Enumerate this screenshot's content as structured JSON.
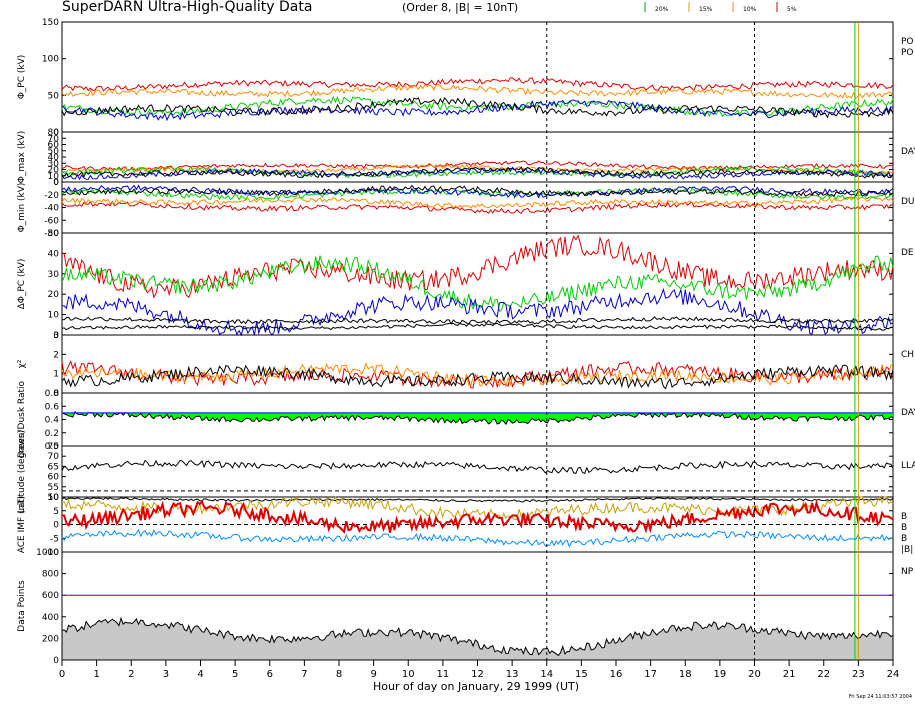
{
  "header": {
    "title": "SuperDARN Ultra-High-Quality Data",
    "subtitle": "(Order 8, |B| = 10nT)",
    "legend": [
      {
        "label": "20%",
        "color": "#00a000"
      },
      {
        "label": "15%",
        "color": "#d8a000"
      },
      {
        "label": "10%",
        "color": "#ff8000"
      },
      {
        "label": "5%",
        "color": "#e00000"
      }
    ],
    "footer_stamp": "Fri Sep 24 11:03:57 2004"
  },
  "colors": {
    "red": "#e00000",
    "green": "#00d000",
    "blue": "#0000d0",
    "orange": "#ff8c00",
    "black": "#000000",
    "gold": "#c8a000",
    "cyan": "#0090ff",
    "purple": "#6000a0",
    "fill_green": "#00ff00",
    "fill_blue": "#0000ff",
    "fill_gray": "#c8c8c8"
  },
  "chart_data": {
    "type": "line",
    "xlabel": "Hour of day on January, 29 1999 (UT)",
    "x_ticks": [
      "0",
      "1",
      "2",
      "3",
      "4",
      "5",
      "6",
      "7",
      "8",
      "9",
      "10",
      "11",
      "12",
      "13",
      "14",
      "15",
      "16",
      "17",
      "18",
      "19",
      "20",
      "21",
      "22",
      "23",
      "24"
    ],
    "xlim": [
      0,
      24
    ],
    "dashed_markers_hours": [
      14,
      20
    ],
    "vertical_highlight_hours": [
      22.9,
      23.0
    ],
    "panels": [
      {
        "id": "phi_pc",
        "ylabel": "Φ_PC (kV)",
        "ylim": [
          0,
          150
        ],
        "yticks": [
          "0",
          "50",
          "100",
          "150"
        ],
        "right_label": "PO\nPO",
        "series": [
          {
            "color": "red",
            "base": 65,
            "amp": 6,
            "noise": 4
          },
          {
            "color": "orange",
            "base": 55,
            "amp": 6,
            "noise": 4
          },
          {
            "color": "green",
            "base": 35,
            "amp": 10,
            "noise": 5
          },
          {
            "color": "blue",
            "base": 30,
            "amp": 10,
            "noise": 5
          },
          {
            "color": "black",
            "base": 32,
            "amp": 10,
            "noise": 5
          }
        ]
      },
      {
        "id": "phi_max",
        "ylabel": "Φ_max (kV)",
        "ylim": [
          0,
          80
        ],
        "yticks": [
          "0",
          "10",
          "20",
          "30",
          "40",
          "50",
          "60",
          "70",
          "80"
        ],
        "right_label": "DAY",
        "series": [
          {
            "color": "red",
            "base": 26,
            "amp": 5,
            "noise": 3
          },
          {
            "color": "orange",
            "base": 20,
            "amp": 5,
            "noise": 3
          },
          {
            "color": "green",
            "base": 15,
            "amp": 6,
            "noise": 4
          },
          {
            "color": "blue",
            "base": 14,
            "amp": 6,
            "noise": 4
          },
          {
            "color": "black",
            "base": 15,
            "amp": 6,
            "noise": 4
          }
        ]
      },
      {
        "id": "phi_min",
        "ylabel": "Φ_min (kV)",
        "ylim": [
          -80,
          0
        ],
        "yticks": [
          "-80",
          "-60",
          "-40",
          "-20",
          "0"
        ],
        "right_label": "DU",
        "series": [
          {
            "color": "red",
            "base": -40,
            "amp": 6,
            "noise": 4
          },
          {
            "color": "orange",
            "base": -32,
            "amp": 6,
            "noise": 4
          },
          {
            "color": "green",
            "base": -18,
            "amp": 6,
            "noise": 4
          },
          {
            "color": "blue",
            "base": -15,
            "amp": 6,
            "noise": 4
          },
          {
            "color": "black",
            "base": -15,
            "amp": 6,
            "noise": 4
          }
        ]
      },
      {
        "id": "dphi_pc",
        "ylabel": "ΔΦ_PC (kV)",
        "ylim": [
          0,
          50
        ],
        "yticks": [
          "0",
          "10",
          "20",
          "30",
          "40",
          "50"
        ],
        "right_label": "DE",
        "series": [
          {
            "color": "red",
            "base": 32,
            "amp": 12,
            "noise": 5
          },
          {
            "color": "green",
            "base": 25,
            "amp": 12,
            "noise": 4
          },
          {
            "color": "blue",
            "base": 12,
            "amp": 9,
            "noise": 4
          },
          {
            "color": "black",
            "base": 7,
            "amp": 1,
            "noise": 1
          },
          {
            "color": "black",
            "base": 4,
            "amp": 1,
            "noise": 0.8
          }
        ]
      },
      {
        "id": "chi2",
        "ylabel": "χ²",
        "ylim": [
          0,
          3
        ],
        "yticks": [
          "0",
          "1",
          "2",
          "3"
        ],
        "right_label": "CH",
        "series": [
          {
            "color": "red",
            "base": 0.9,
            "amp": 0.4,
            "noise": 0.35
          },
          {
            "color": "orange",
            "base": 0.9,
            "amp": 0.4,
            "noise": 0.3
          },
          {
            "color": "black",
            "base": 0.8,
            "amp": 0.4,
            "noise": 0.3
          }
        ]
      },
      {
        "id": "dawn_dusk",
        "ylabel": "Dawn/Dusk Ratio",
        "ylim": [
          0.0,
          0.8
        ],
        "yticks": [
          "0.0",
          "0.2",
          "0.4",
          "0.6",
          "0.8"
        ],
        "right_label": "DAY",
        "series": [
          {
            "color": "black",
            "base": 0.42,
            "amp": 0.06,
            "noise": 0.04
          }
        ]
      },
      {
        "id": "latitude",
        "ylabel": "Latitude (degrees)",
        "ylim": [
          50,
          75
        ],
        "yticks": [
          "50",
          "55",
          "60",
          "65",
          "70",
          "75"
        ],
        "right_label": "LLA",
        "dashed_level": 53,
        "series": [
          {
            "color": "black",
            "base": 65,
            "amp": 2,
            "noise": 1.5
          }
        ]
      },
      {
        "id": "ace_imf",
        "ylabel": "ACE IMF (nT)",
        "ylim": [
          -10,
          10
        ],
        "yticks": [
          "-10",
          "-5",
          "0",
          "5",
          "10"
        ],
        "right_label": "B\nB\nB\n|B|",
        "dashed_level": 0,
        "series": [
          {
            "color": "black",
            "base": 9,
            "amp": 0.5,
            "noise": 0.4
          },
          {
            "color": "gold",
            "base": 6,
            "amp": 3,
            "noise": 2
          },
          {
            "color": "red",
            "base": 2,
            "amp": 4,
            "noise": 2.5,
            "bold": true
          },
          {
            "color": "cyan",
            "base": -5,
            "amp": 2,
            "noise": 1.2
          }
        ]
      },
      {
        "id": "data_points",
        "ylabel": "Data Points",
        "ylim": [
          0,
          1000
        ],
        "yticks": [
          "0",
          "200",
          "400",
          "600",
          "800",
          "1000"
        ],
        "right_label": "NP",
        "purple_level": 600,
        "series": [
          {
            "color": "black",
            "base": 220,
            "amp": 150,
            "noise": 40
          }
        ]
      }
    ]
  }
}
